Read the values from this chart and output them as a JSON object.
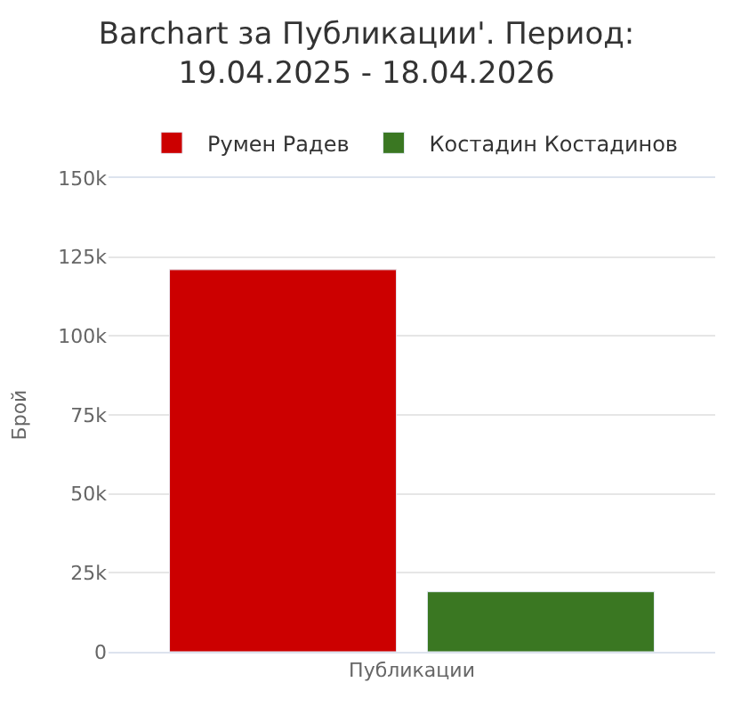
{
  "chart_data": {
    "type": "bar",
    "title": "Barchart за Публикации'. Период:\n19.04.2025 - 18.04.2026",
    "ylabel": "Брой",
    "categories": [
      "Публикации"
    ],
    "series": [
      {
        "name": "Румен Радев",
        "color": "#cc0000",
        "values": [
          121000
        ]
      },
      {
        "name": "Костадин Костадинов",
        "color": "#3a7722",
        "values": [
          19000
        ]
      }
    ],
    "ylim": [
      0,
      150000
    ],
    "yticks": [
      0,
      {
        "value": 25000,
        "label": "25k"
      },
      {
        "value": 50000,
        "label": "50k"
      },
      {
        "value": 75000,
        "label": "75k"
      },
      {
        "value": 100000,
        "label": "100k"
      },
      {
        "value": 125000,
        "label": "125k"
      },
      {
        "value": 150000,
        "label": "150k"
      }
    ],
    "grid": "y",
    "legend": "top"
  }
}
